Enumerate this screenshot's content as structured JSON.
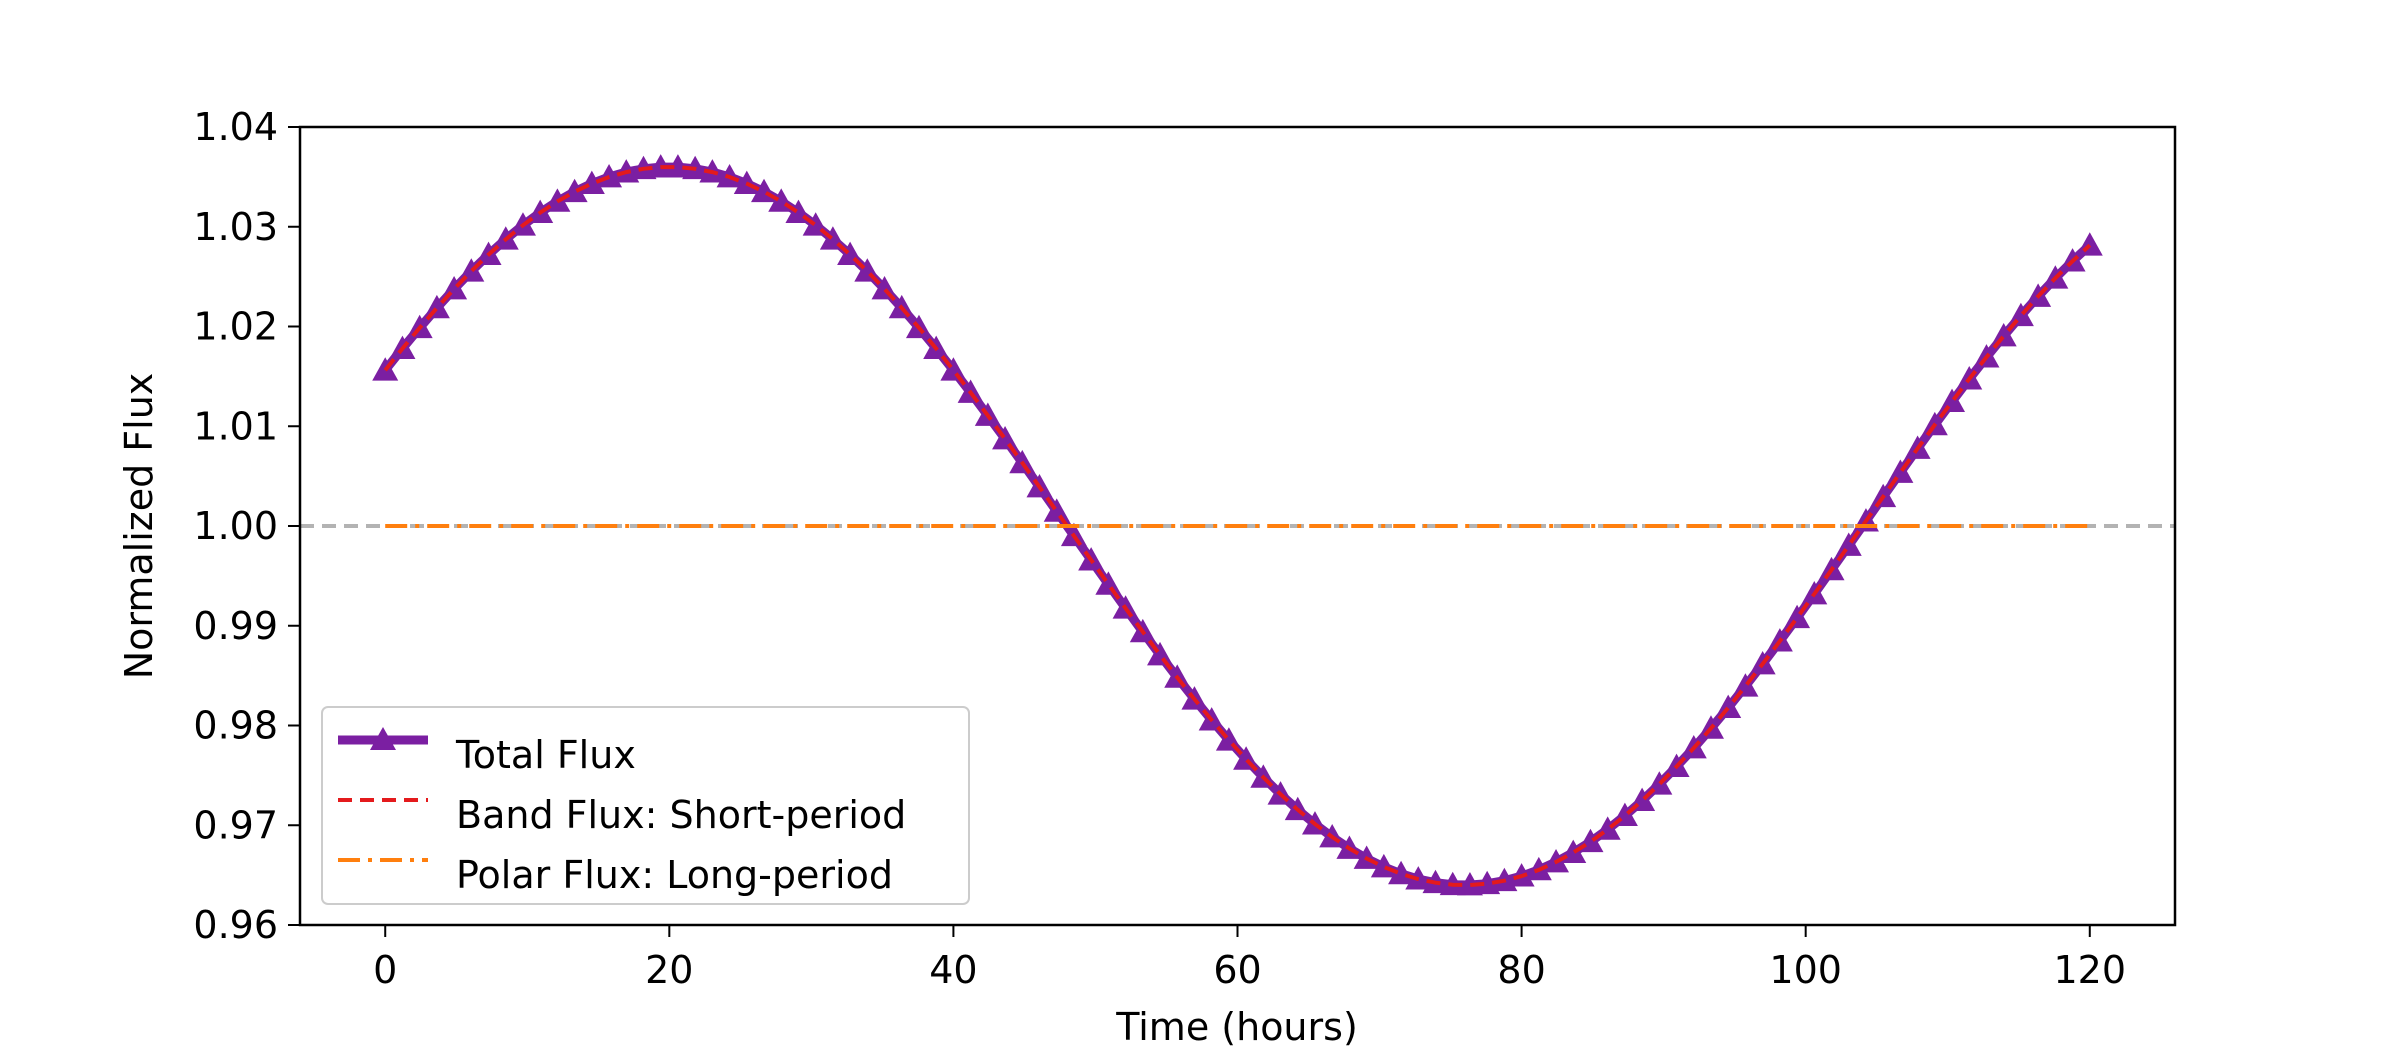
{
  "chart_data": {
    "type": "line",
    "title": "",
    "xlabel": "Time (hours)",
    "ylabel": "Normalized Flux",
    "xlim": [
      -6,
      126
    ],
    "ylim": [
      0.96,
      1.04
    ],
    "x_ticks": [
      0,
      20,
      40,
      60,
      80,
      100,
      120
    ],
    "x_tick_labels": [
      "0",
      "20",
      "40",
      "60",
      "80",
      "100",
      "120"
    ],
    "y_ticks": [
      0.96,
      0.97,
      0.98,
      0.99,
      1.0,
      1.01,
      1.02,
      1.03,
      1.04
    ],
    "y_tick_labels": [
      "0.96",
      "0.97",
      "0.98",
      "0.99",
      "1.00",
      "1.01",
      "1.02",
      "1.03",
      "1.04"
    ],
    "grid": false,
    "reference_line": {
      "y": 1.0,
      "color": "#b3b3b3",
      "style": "dashed"
    },
    "x_range": [
      0,
      120
    ],
    "num_points": 100,
    "legend_position": "lower-left",
    "series": [
      {
        "name": "Total Flux",
        "color": "#7b1fa2",
        "style": "solid-thick",
        "marker": "triangle",
        "x": [
          0,
          20,
          52,
          80,
          108,
          120
        ],
        "y": [
          1.021,
          1.036,
          1.0,
          0.964,
          1.0,
          1.021
        ]
      },
      {
        "name": "Band Flux: Short-period",
        "color": "#e41a1c",
        "style": "dashed",
        "x": [
          0,
          20,
          52,
          80,
          108,
          120
        ],
        "y": [
          1.021,
          1.036,
          1.0,
          0.964,
          1.0,
          1.021
        ]
      },
      {
        "name": "Polar Flux: Long-period",
        "color": "#ff7f0e",
        "style": "dashdot",
        "x": [
          0,
          120
        ],
        "y": [
          1.0,
          1.0
        ]
      }
    ]
  }
}
